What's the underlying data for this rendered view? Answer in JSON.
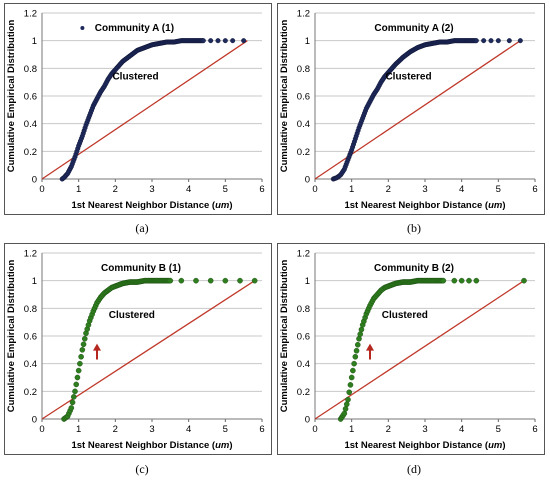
{
  "chart_data": [
    {
      "type": "scatter",
      "panel_label": "(a)",
      "title": "Community A (1)",
      "legend_marker": true,
      "annotation": "Clustered",
      "arrow": false,
      "xlabel": "1st Nearest Neighbor Distance (um)",
      "ylabel": "Cumulative Empirical Distribution",
      "xlim": [
        0,
        6
      ],
      "ylim": [
        0,
        1.2
      ],
      "xticks": [
        "0",
        "1",
        "2",
        "3",
        "4",
        "5",
        "6"
      ],
      "yticks": [
        "0",
        "0.2",
        "0.4",
        "0.6",
        "0.8",
        "1",
        "1.2"
      ],
      "grid": "horizontal",
      "series": [
        {
          "role": "empirical",
          "color": "#1f2a5c",
          "x": [
            0.55,
            0.6,
            0.7,
            0.8,
            0.9,
            1.0,
            1.1,
            1.2,
            1.3,
            1.4,
            1.5,
            1.6,
            1.7,
            1.8,
            1.9,
            2.0,
            2.2,
            2.4,
            2.6,
            2.8,
            3.0,
            3.2,
            3.4,
            3.6,
            3.8,
            4.0,
            4.2,
            4.4,
            4.6,
            4.8,
            5.0,
            5.2,
            5.5
          ],
          "y": [
            0.0,
            0.01,
            0.04,
            0.09,
            0.16,
            0.24,
            0.31,
            0.39,
            0.46,
            0.53,
            0.58,
            0.63,
            0.67,
            0.72,
            0.76,
            0.79,
            0.85,
            0.89,
            0.93,
            0.95,
            0.97,
            0.98,
            0.99,
            0.99,
            1.0,
            1.0,
            1.0,
            1.0,
            1.0,
            1.0,
            1.0,
            1.0,
            1.0
          ]
        },
        {
          "role": "reference",
          "color": "#c0392b",
          "x": [
            0,
            5.6
          ],
          "y": [
            0,
            1
          ]
        }
      ]
    },
    {
      "type": "scatter",
      "panel_label": "(b)",
      "title": "Community A (2)",
      "legend_marker": false,
      "annotation": "Clustered",
      "arrow": false,
      "xlabel": "1st Nearest Neighbor Distance (um)",
      "ylabel": "Cumulative Empirical Distribution",
      "xlim": [
        0,
        6
      ],
      "ylim": [
        0,
        1.2
      ],
      "xticks": [
        "0",
        "1",
        "2",
        "3",
        "4",
        "5",
        "6"
      ],
      "yticks": [
        "0",
        "0.2",
        "0.4",
        "0.6",
        "0.8",
        "1",
        "1.2"
      ],
      "grid": "horizontal",
      "series": [
        {
          "role": "empirical",
          "color": "#1f2a5c",
          "x": [
            0.5,
            0.6,
            0.7,
            0.8,
            0.9,
            1.0,
            1.1,
            1.2,
            1.3,
            1.4,
            1.5,
            1.6,
            1.7,
            1.8,
            1.9,
            2.0,
            2.2,
            2.4,
            2.6,
            2.8,
            3.0,
            3.2,
            3.4,
            3.6,
            3.8,
            4.0,
            4.2,
            4.4,
            4.6,
            4.8,
            5.0,
            5.3,
            5.6
          ],
          "y": [
            0.0,
            0.01,
            0.03,
            0.07,
            0.14,
            0.21,
            0.29,
            0.37,
            0.44,
            0.51,
            0.56,
            0.61,
            0.65,
            0.7,
            0.74,
            0.77,
            0.83,
            0.88,
            0.92,
            0.95,
            0.97,
            0.98,
            0.99,
            0.99,
            1.0,
            1.0,
            1.0,
            1.0,
            1.0,
            1.0,
            1.0,
            1.0,
            1.0
          ]
        },
        {
          "role": "reference",
          "color": "#c0392b",
          "x": [
            0,
            5.6
          ],
          "y": [
            0,
            1
          ]
        }
      ]
    },
    {
      "type": "scatter",
      "panel_label": "(c)",
      "title": "Community B (1)",
      "legend_marker": false,
      "annotation": "Clustered",
      "arrow": true,
      "xlabel": "1st Nearest Neighbor Distance (um)",
      "ylabel": "Cumulative Empirical Distribution",
      "xlim": [
        0,
        6
      ],
      "ylim": [
        0,
        1.2
      ],
      "xticks": [
        "0",
        "1",
        "2",
        "3",
        "4",
        "5",
        "6"
      ],
      "yticks": [
        "0",
        "0.2",
        "0.4",
        "0.6",
        "0.8",
        "1",
        "1.2"
      ],
      "grid": "horizontal",
      "series": [
        {
          "role": "empirical",
          "color": "#2e7d1e",
          "x": [
            0.6,
            0.7,
            0.8,
            0.9,
            1.0,
            1.1,
            1.2,
            1.3,
            1.4,
            1.5,
            1.6,
            1.7,
            1.8,
            1.9,
            2.0,
            2.2,
            2.4,
            2.6,
            2.8,
            3.0,
            3.2,
            3.5,
            3.8,
            4.2,
            4.6,
            5.0,
            5.4,
            5.8
          ],
          "y": [
            0.0,
            0.02,
            0.08,
            0.2,
            0.35,
            0.5,
            0.62,
            0.71,
            0.78,
            0.84,
            0.88,
            0.91,
            0.93,
            0.95,
            0.96,
            0.98,
            0.99,
            0.99,
            1.0,
            1.0,
            1.0,
            1.0,
            1.0,
            1.0,
            1.0,
            1.0,
            1.0,
            1.0
          ]
        },
        {
          "role": "reference",
          "color": "#c0392b",
          "x": [
            0,
            5.8
          ],
          "y": [
            0,
            1
          ]
        }
      ]
    },
    {
      "type": "scatter",
      "panel_label": "(d)",
      "title": "Community B (2)",
      "legend_marker": false,
      "annotation": "Clustered",
      "arrow": true,
      "xlabel": "1st Nearest Neighbor Distance (um)",
      "ylabel": "Cumulative Empirical Distribution",
      "xlim": [
        0,
        6
      ],
      "ylim": [
        0,
        1.2
      ],
      "xticks": [
        "0",
        "1",
        "2",
        "3",
        "4",
        "5",
        "6"
      ],
      "yticks": [
        "0",
        "0.2",
        "0.4",
        "0.6",
        "0.8",
        "1",
        "1.2"
      ],
      "grid": "horizontal",
      "series": [
        {
          "role": "empirical",
          "color": "#2e7d1e",
          "x": [
            0.7,
            0.8,
            0.9,
            1.0,
            1.1,
            1.2,
            1.3,
            1.4,
            1.5,
            1.6,
            1.7,
            1.8,
            1.9,
            2.0,
            2.2,
            2.4,
            2.6,
            2.8,
            3.0,
            3.2,
            3.5,
            3.8,
            4.0,
            4.2,
            4.4,
            5.7
          ],
          "y": [
            0.0,
            0.04,
            0.14,
            0.3,
            0.45,
            0.58,
            0.68,
            0.76,
            0.82,
            0.87,
            0.9,
            0.93,
            0.95,
            0.96,
            0.98,
            0.99,
            0.99,
            1.0,
            1.0,
            1.0,
            1.0,
            1.0,
            1.0,
            1.0,
            1.0,
            1.0
          ]
        },
        {
          "role": "reference",
          "color": "#c0392b",
          "x": [
            0,
            5.7
          ],
          "y": [
            0,
            1
          ]
        }
      ]
    }
  ]
}
